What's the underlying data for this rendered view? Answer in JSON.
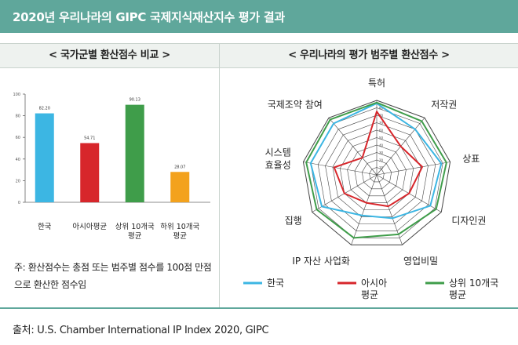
{
  "header": {
    "title": "2020년 우리나라의 GIPC 국제지식재산지수 평가 결과"
  },
  "left_panel": {
    "title": "< 국가군별 환산점수 비교 >",
    "note": "주: 환산점수는 총점 또는 범주별 점수를 100점 만점으로 환산한 점수임"
  },
  "right_panel": {
    "title": "< 우리나라의 평가 범주별 환산점수 >"
  },
  "source": "출처: U.S. Chamber International IP Index 2020, GIPC",
  "colors": {
    "header_bg": "#5fa79b",
    "korea": "#3cb6e3",
    "asia": "#d7262b",
    "top10": "#3f9d4a",
    "bottom10": "#f3a21d",
    "grid": "#555555"
  },
  "chart_data": [
    {
      "type": "bar",
      "categories": [
        [
          "한국"
        ],
        [
          "아시아평균"
        ],
        [
          "상위 10개국",
          "평균"
        ],
        [
          "하위 10개국",
          "평균"
        ]
      ],
      "values": [
        82.2,
        54.71,
        90.13,
        28.07
      ],
      "value_labels": [
        "82.20",
        "54.71",
        "90.13",
        "28.07"
      ],
      "colors": [
        "#3cb6e3",
        "#d7262b",
        "#3f9d4a",
        "#f3a21d"
      ],
      "yticks": [
        "0",
        "20",
        "40",
        "60",
        "80",
        "100"
      ],
      "ylim": [
        0,
        100
      ],
      "grid": false
    },
    {
      "type": "radar",
      "axes": [
        [
          "특허"
        ],
        [
          "저작권"
        ],
        [
          "상표"
        ],
        [
          "디자인권"
        ],
        [
          "영업비밀"
        ],
        [
          "IP 자산 사업화"
        ],
        [
          "집행"
        ],
        [
          "시스템",
          "효율성"
        ],
        [
          "국제조약 참여"
        ]
      ],
      "rmax": 100,
      "rings": 10,
      "series": [
        {
          "name": [
            "한국"
          ],
          "color": "#3cb6e3",
          "values": [
            96,
            80,
            88,
            83,
            62,
            58,
            85,
            90,
            90
          ]
        },
        {
          "name": [
            "아시아",
            "평균"
          ],
          "color": "#d7262b",
          "values": [
            85,
            50,
            62,
            50,
            45,
            40,
            50,
            58,
            30
          ]
        },
        {
          "name": [
            "상위 10개국",
            "평균"
          ],
          "color": "#3f9d4a",
          "values": [
            97,
            94,
            95,
            92,
            85,
            90,
            93,
            96,
            97
          ]
        }
      ],
      "legend_position": "bottom"
    }
  ]
}
